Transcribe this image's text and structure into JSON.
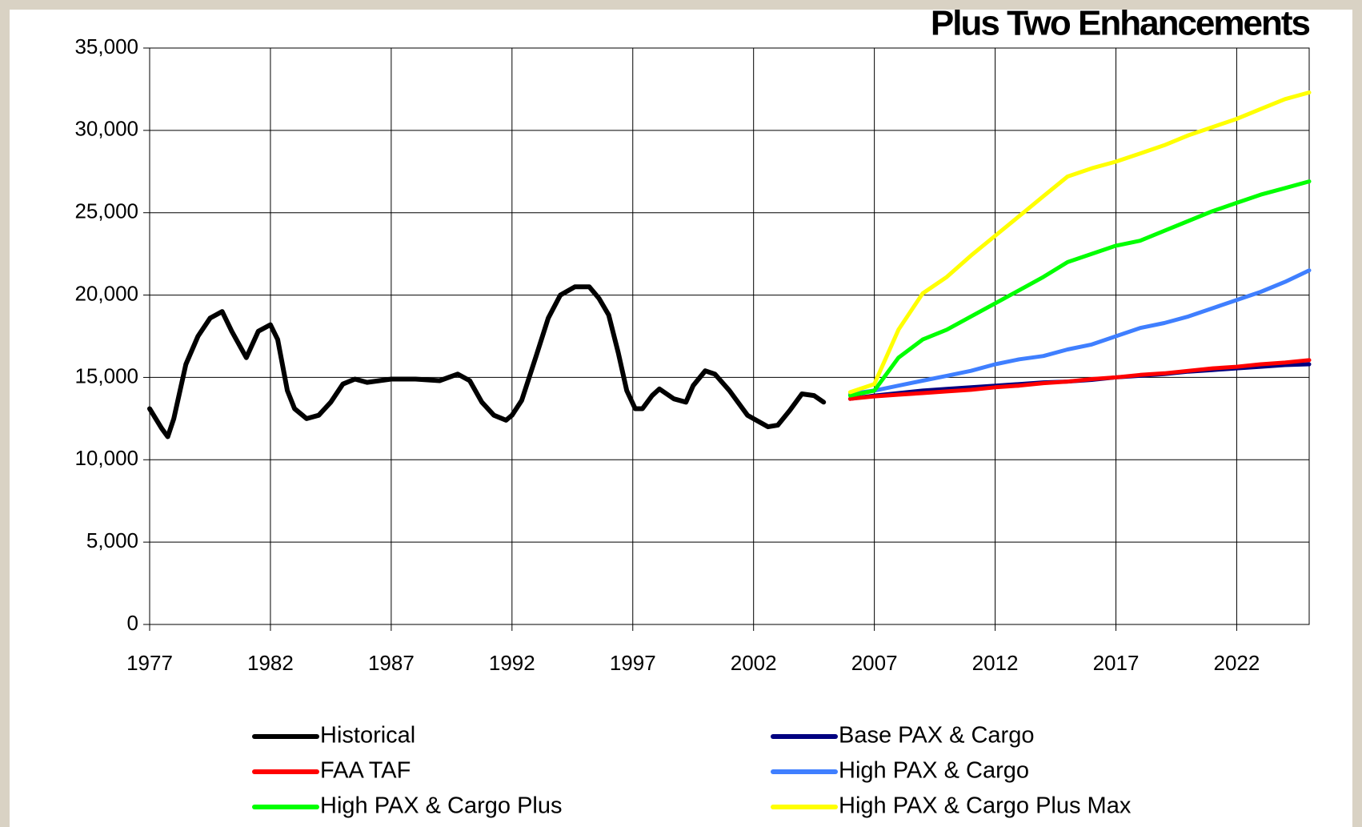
{
  "chart_data": {
    "type": "line",
    "title": "Plus Two Enhancements",
    "xlim": [
      1977,
      2025
    ],
    "xticks": [
      1977,
      1982,
      1987,
      1992,
      1997,
      2002,
      2007,
      2012,
      2017,
      2022
    ],
    "ylim": [
      0,
      35000
    ],
    "yticks": [
      {
        "value": 0,
        "label": "0"
      },
      {
        "value": 5000,
        "label": "5,000"
      },
      {
        "value": 10000,
        "label": "10,000"
      },
      {
        "value": 15000,
        "label": "15,000"
      },
      {
        "value": 20000,
        "label": "20,000"
      },
      {
        "value": 25000,
        "label": "25,000"
      },
      {
        "value": 30000,
        "label": "30,000"
      },
      {
        "value": 35000,
        "label": "35,000"
      }
    ],
    "grid": true,
    "legend": "bottom",
    "series": [
      {
        "name": "Historical",
        "color": "#000000",
        "x": [
          1977,
          1977.5,
          1977.75,
          1978,
          1978.5,
          1979,
          1979.5,
          1980,
          1980.4,
          1981,
          1981.5,
          1982,
          1982.3,
          1982.7,
          1983,
          1983.5,
          1984,
          1984.5,
          1985,
          1985.5,
          1986,
          1987,
          1988,
          1989,
          1989.75,
          1990.25,
          1990.75,
          1991.25,
          1991.75,
          1992,
          1992.4,
          1993,
          1993.5,
          1994,
          1994.6,
          1995.2,
          1995.6,
          1996,
          1996.4,
          1996.75,
          1997.1,
          1997.4,
          1997.8,
          1998.1,
          1998.7,
          1999.2,
          1999.5,
          2000,
          2000.4,
          2001,
          2001.75,
          2002.6,
          2003,
          2003.5,
          2004,
          2004.5,
          2004.9
        ],
        "values": [
          13100,
          11900,
          11400,
          12500,
          15800,
          17500,
          18600,
          19000,
          17800,
          16200,
          17800,
          18200,
          17300,
          14200,
          13100,
          12500,
          12700,
          13500,
          14600,
          14900,
          14700,
          14900,
          14900,
          14800,
          15200,
          14800,
          13500,
          12700,
          12400,
          12700,
          13600,
          16300,
          18600,
          20000,
          20500,
          20500,
          19800,
          18800,
          16500,
          14200,
          13100,
          13100,
          13900,
          14300,
          13700,
          13500,
          14500,
          15400,
          15200,
          14200,
          12700,
          12000,
          12100,
          13000,
          14000,
          13900,
          13500
        ]
      },
      {
        "name": "Base PAX & Cargo",
        "color": "#000080",
        "x": [
          2006,
          2007,
          2008,
          2009,
          2010,
          2011,
          2012,
          2013,
          2014,
          2015,
          2016,
          2017,
          2018,
          2019,
          2020,
          2021,
          2022,
          2023,
          2024,
          2025
        ],
        "values": [
          13700,
          13900,
          14050,
          14200,
          14300,
          14400,
          14500,
          14600,
          14700,
          14750,
          14850,
          15000,
          15100,
          15200,
          15350,
          15450,
          15550,
          15650,
          15750,
          15800
        ]
      },
      {
        "name": "FAA TAF",
        "color": "#ff0000",
        "x": [
          2006,
          2007,
          2008,
          2009,
          2010,
          2011,
          2012,
          2013,
          2014,
          2015,
          2016,
          2017,
          2018,
          2019,
          2020,
          2021,
          2022,
          2023,
          2024,
          2025
        ],
        "values": [
          13700,
          13850,
          13950,
          14050,
          14150,
          14250,
          14400,
          14500,
          14650,
          14750,
          14900,
          15000,
          15150,
          15250,
          15400,
          15550,
          15650,
          15800,
          15900,
          16050
        ]
      },
      {
        "name": "High PAX & Cargo",
        "color": "#3f7fff",
        "x": [
          2006,
          2007,
          2008,
          2009,
          2010,
          2011,
          2012,
          2013,
          2014,
          2015,
          2016,
          2017,
          2018,
          2019,
          2020,
          2021,
          2022,
          2023,
          2024,
          2025
        ],
        "values": [
          14000,
          14200,
          14500,
          14800,
          15100,
          15400,
          15800,
          16100,
          16300,
          16700,
          17000,
          17500,
          18000,
          18300,
          18700,
          19200,
          19700,
          20200,
          20800,
          21500
        ]
      },
      {
        "name": "High PAX & Cargo Plus",
        "color": "#00ff00",
        "x": [
          2006,
          2007,
          2008,
          2009,
          2010,
          2011,
          2012,
          2013,
          2014,
          2015,
          2016,
          2017,
          2018,
          2019,
          2020,
          2021,
          2022,
          2023,
          2024,
          2025
        ],
        "values": [
          13900,
          14200,
          16200,
          17300,
          17900,
          18700,
          19500,
          20300,
          21100,
          22000,
          22500,
          23000,
          23300,
          23900,
          24500,
          25100,
          25600,
          26100,
          26500,
          26900
        ]
      },
      {
        "name": "High PAX & Cargo Plus Max",
        "color": "#ffff00",
        "x": [
          2006,
          2007,
          2008,
          2009,
          2010,
          2011,
          2012,
          2013,
          2014,
          2015,
          2016,
          2017,
          2018,
          2019,
          2020,
          2021,
          2022,
          2023,
          2024,
          2025
        ],
        "values": [
          14100,
          14600,
          17900,
          20100,
          21100,
          22400,
          23600,
          24800,
          26000,
          27200,
          27700,
          28100,
          28600,
          29100,
          29700,
          30200,
          30700,
          31300,
          31900,
          32300
        ]
      }
    ]
  }
}
